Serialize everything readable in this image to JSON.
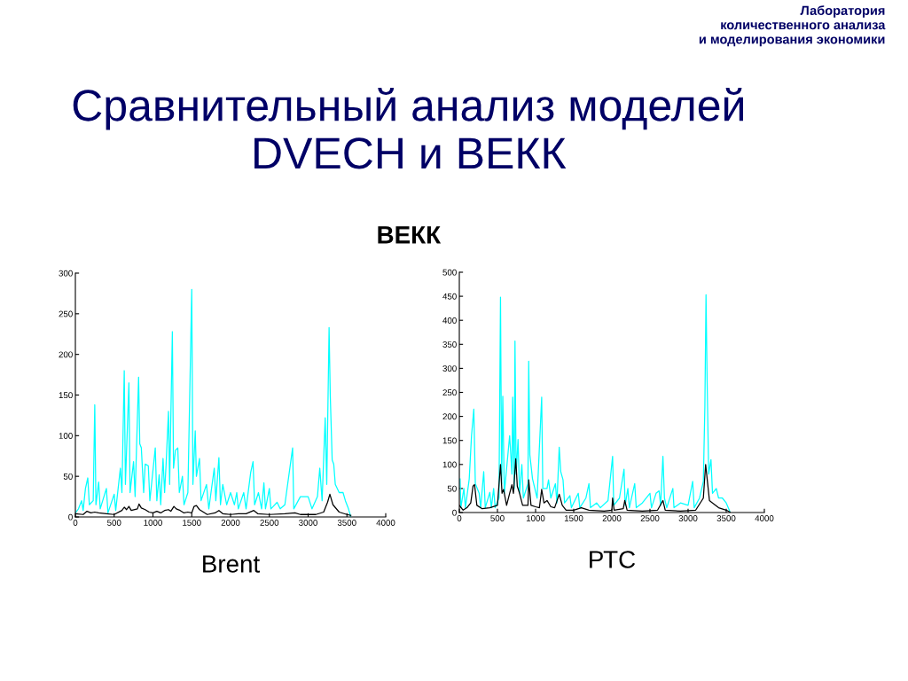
{
  "chart_data": [
    {
      "type": "line",
      "title": "Сравнительный анализ моделей DVECH и ВЕКК",
      "subtitle": "ВЕКК",
      "annotations": [
        "Лаборатория\nколичественного анализа\nи моделирования экономики"
      ],
      "xlabel": "Brent",
      "xlim": [
        0,
        4000
      ],
      "xticks": [
        0,
        500,
        1000,
        1500,
        2000,
        2500,
        3000,
        3500,
        4000
      ],
      "ylim": [
        0,
        300
      ],
      "yticks": [
        0,
        50,
        100,
        150,
        200,
        250,
        300
      ],
      "grid": false,
      "legend": false,
      "series": [
        {
          "color": "#00ffff",
          "x": [
            0,
            40,
            80,
            100,
            130,
            160,
            180,
            230,
            250,
            265,
            300,
            320,
            400,
            420,
            500,
            520,
            580,
            600,
            630,
            645,
            690,
            705,
            750,
            770,
            815,
            830,
            850,
            880,
            900,
            940,
            960,
            1030,
            1050,
            1080,
            1100,
            1130,
            1150,
            1170,
            1200,
            1215,
            1250,
            1265,
            1290,
            1320,
            1340,
            1380,
            1400,
            1450,
            1500,
            1515,
            1545,
            1560,
            1600,
            1620,
            1690,
            1720,
            1790,
            1810,
            1850,
            1870,
            1900,
            1950,
            2000,
            2050,
            2080,
            2100,
            2170,
            2200,
            2260,
            2290,
            2310,
            2360,
            2400,
            2430,
            2450,
            2500,
            2520,
            2600,
            2640,
            2700,
            2800,
            2815,
            2900,
            3000,
            3050,
            3120,
            3150,
            3180,
            3220,
            3240,
            3270,
            3285,
            3310,
            3330,
            3350,
            3400,
            3450,
            3480,
            3520,
            3550
          ],
          "values": [
            5,
            10,
            20,
            8,
            35,
            48,
            15,
            20,
            138,
            15,
            43,
            10,
            35,
            5,
            28,
            8,
            60,
            30,
            180,
            40,
            165,
            30,
            68,
            25,
            172,
            90,
            85,
            30,
            65,
            63,
            20,
            85,
            20,
            52,
            15,
            72,
            30,
            66,
            130,
            40,
            228,
            60,
            82,
            85,
            30,
            50,
            15,
            30,
            280,
            40,
            106,
            50,
            72,
            20,
            40,
            10,
            60,
            20,
            73,
            15,
            40,
            15,
            30,
            15,
            30,
            10,
            30,
            10,
            55,
            68,
            15,
            30,
            10,
            42,
            10,
            35,
            10,
            18,
            10,
            15,
            85,
            10,
            25,
            25,
            10,
            25,
            60,
            20,
            122,
            40,
            233,
            150,
            70,
            65,
            40,
            30,
            30,
            20,
            10,
            0
          ]
        },
        {
          "color": "#000000",
          "x": [
            0,
            100,
            150,
            200,
            250,
            300,
            400,
            500,
            600,
            630,
            660,
            690,
            720,
            800,
            820,
            850,
            900,
            950,
            1000,
            1050,
            1100,
            1150,
            1200,
            1230,
            1270,
            1300,
            1350,
            1400,
            1450,
            1500,
            1530,
            1560,
            1600,
            1700,
            1800,
            1850,
            1900,
            2000,
            2100,
            2200,
            2300,
            2350,
            2500,
            2700,
            2830,
            2900,
            3100,
            3200,
            3250,
            3280,
            3320,
            3400,
            3500,
            3550
          ],
          "values": [
            4,
            3,
            7,
            5,
            6,
            5,
            4,
            3,
            8,
            12,
            9,
            13,
            8,
            10,
            16,
            11,
            9,
            6,
            5,
            7,
            5,
            8,
            9,
            7,
            13,
            10,
            8,
            5,
            6,
            5,
            13,
            14,
            9,
            3,
            5,
            8,
            4,
            3,
            4,
            4,
            8,
            4,
            3,
            4,
            5,
            3,
            3,
            6,
            18,
            28,
            15,
            6,
            3,
            2
          ]
        }
      ]
    },
    {
      "type": "line",
      "xlabel": "РТС",
      "xlim": [
        0,
        4000
      ],
      "xticks": [
        0,
        500,
        1000,
        1500,
        2000,
        2500,
        3000,
        3500,
        4000
      ],
      "ylim": [
        0,
        500
      ],
      "yticks": [
        0,
        50,
        100,
        150,
        200,
        250,
        300,
        350,
        400,
        450,
        500
      ],
      "grid": false,
      "legend": false,
      "series": [
        {
          "color": "#00ffff",
          "x": [
            10,
            20,
            60,
            80,
            130,
            160,
            190,
            210,
            260,
            280,
            320,
            340,
            400,
            420,
            450,
            470,
            520,
            540,
            555,
            570,
            590,
            660,
            690,
            700,
            720,
            730,
            745,
            770,
            790,
            820,
            840,
            900,
            910,
            925,
            960,
            990,
            1020,
            1080,
            1095,
            1150,
            1170,
            1200,
            1260,
            1280,
            1310,
            1330,
            1360,
            1380,
            1450,
            1470,
            1560,
            1580,
            1660,
            1700,
            1720,
            1800,
            1850,
            1950,
            2010,
            2025,
            2100,
            2160,
            2175,
            2210,
            2230,
            2300,
            2320,
            2400,
            2500,
            2520,
            2580,
            2620,
            2640,
            2670,
            2690,
            2720,
            2800,
            2815,
            2900,
            3000,
            3060,
            3080,
            3150,
            3200,
            3220,
            3235,
            3250,
            3270,
            3300,
            3320,
            3370,
            3400,
            3450,
            3500,
            3540,
            3550
          ],
          "values": [
            70,
            10,
            50,
            10,
            70,
            160,
            215,
            60,
            40,
            10,
            85,
            10,
            42,
            10,
            50,
            10,
            30,
            448,
            60,
            242,
            40,
            160,
            80,
            240,
            50,
            357,
            80,
            152,
            40,
            100,
            30,
            60,
            315,
            120,
            70,
            50,
            30,
            240,
            50,
            50,
            68,
            30,
            60,
            20,
            136,
            85,
            68,
            20,
            35,
            10,
            40,
            10,
            30,
            60,
            10,
            20,
            10,
            25,
            117,
            15,
            30,
            90,
            15,
            50,
            10,
            60,
            10,
            20,
            40,
            10,
            40,
            45,
            15,
            117,
            30,
            10,
            50,
            10,
            20,
            15,
            65,
            10,
            30,
            65,
            220,
            453,
            270,
            80,
            110,
            40,
            50,
            30,
            30,
            20,
            5,
            0
          ]
        },
        {
          "color": "#000000",
          "x": [
            0,
            50,
            100,
            150,
            180,
            200,
            230,
            300,
            400,
            500,
            540,
            560,
            580,
            620,
            660,
            690,
            710,
            740,
            760,
            790,
            830,
            900,
            910,
            940,
            1000,
            1050,
            1080,
            1110,
            1150,
            1200,
            1250,
            1310,
            1350,
            1400,
            1500,
            1600,
            1700,
            1900,
            2000,
            2010,
            2030,
            2150,
            2170,
            2200,
            2400,
            2600,
            2670,
            2700,
            2900,
            3100,
            3200,
            3230,
            3250,
            3280,
            3320,
            3400,
            3500,
            3550
          ],
          "values": [
            15,
            5,
            10,
            20,
            55,
            58,
            15,
            8,
            10,
            15,
            100,
            40,
            48,
            15,
            40,
            58,
            40,
            112,
            55,
            40,
            15,
            15,
            68,
            15,
            12,
            10,
            48,
            20,
            25,
            12,
            10,
            38,
            15,
            5,
            5,
            10,
            5,
            3,
            5,
            30,
            5,
            8,
            25,
            5,
            3,
            5,
            25,
            5,
            3,
            5,
            30,
            100,
            70,
            25,
            20,
            10,
            5,
            1
          ]
        }
      ]
    }
  ]
}
